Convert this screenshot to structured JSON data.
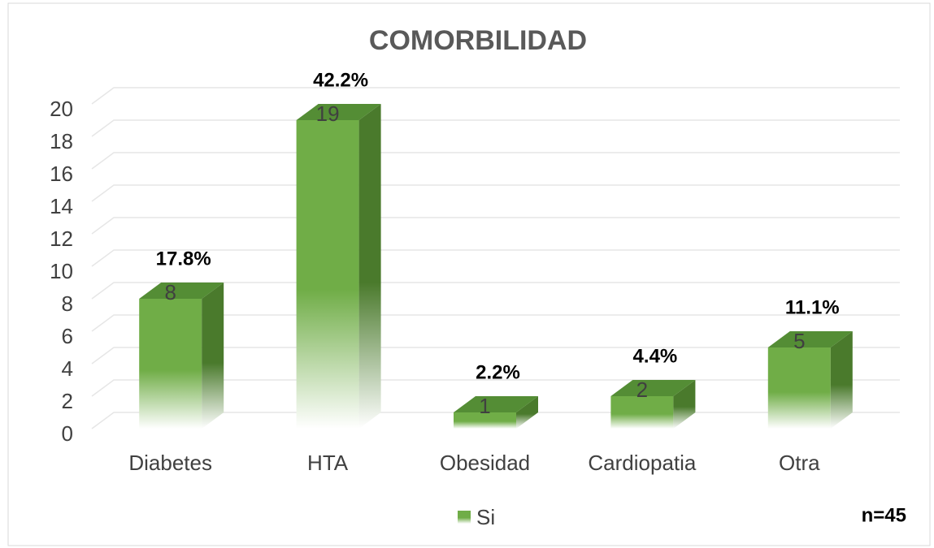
{
  "chart_data": {
    "type": "bar3d",
    "title": "COMORBILIDAD",
    "categories": [
      "Diabetes",
      "HTA",
      "Obesidad",
      "Cardiopatia",
      "Otra"
    ],
    "series": [
      {
        "name": "Si",
        "color": "#70ad47",
        "values": [
          8,
          19,
          1,
          2,
          5
        ]
      }
    ],
    "percent_labels": [
      "17.8%",
      "42.2%",
      "2.2%",
      "4.4%",
      "11.1%"
    ],
    "ylim": [
      0,
      20
    ],
    "yticks": [
      0,
      2,
      4,
      6,
      8,
      10,
      12,
      14,
      16,
      18,
      20
    ],
    "grid": true,
    "legend": "bottom",
    "annotation": "n=45"
  }
}
